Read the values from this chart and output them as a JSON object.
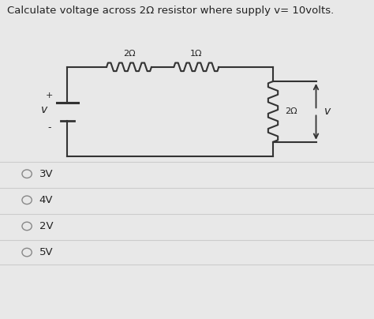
{
  "title": "Calculate voltage across 2Ω resistor where supply v= 10volts.",
  "title_fontsize": 9.5,
  "bg_color": "#e8e8e8",
  "content_bg": "#f0f0f0",
  "choices": [
    "3V",
    "4V",
    "2V",
    "5V"
  ],
  "resistor_labels": [
    "2Ω",
    "1Ω",
    "2Ω"
  ],
  "source_label": "v",
  "source_plus": "+",
  "source_minus": "-",
  "voltage_label": "v",
  "wire_color": "#333333",
  "text_color": "#222222",
  "separator_color": "#cccccc"
}
